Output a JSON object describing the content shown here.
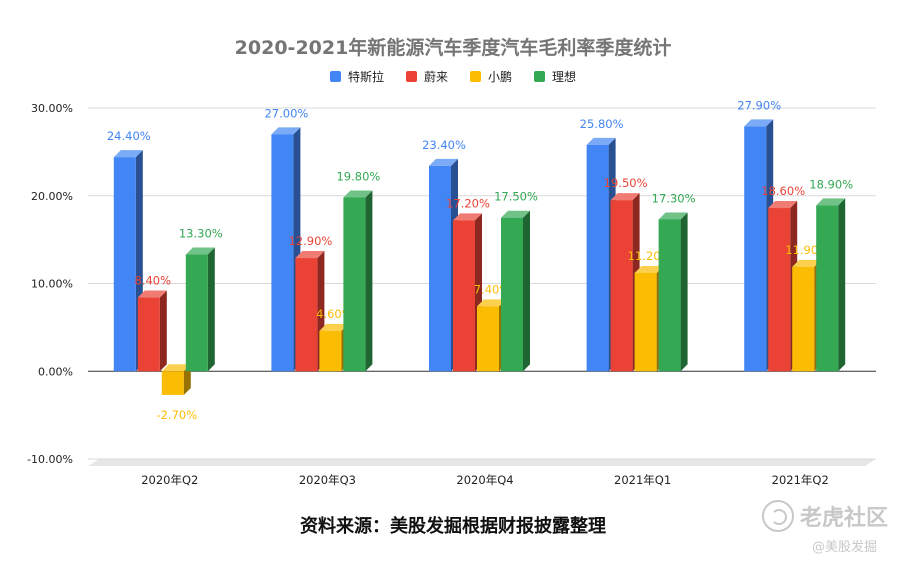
{
  "chart_data": {
    "type": "bar",
    "title": "2020-2021年新能源汽车季度汽车毛利率季度统计",
    "categories": [
      "2020年Q2",
      "2020年Q3",
      "2020年Q4",
      "2021年Q1",
      "2021年Q2"
    ],
    "series": [
      {
        "name": "特斯拉",
        "color": "#4285f4",
        "label_color": "#4285f4",
        "values": [
          24.4,
          27.0,
          23.4,
          25.8,
          27.9
        ],
        "labels": [
          "24.40%",
          "27.00%",
          "23.40%",
          "25.80%",
          "27.90%"
        ]
      },
      {
        "name": "蔚来",
        "color": "#ea4335",
        "label_color": "#ea4335",
        "values": [
          8.4,
          12.9,
          17.2,
          19.5,
          18.6
        ],
        "labels": [
          "8.40%",
          "12.90%",
          "17.20%",
          "19.50%",
          "18.60%"
        ]
      },
      {
        "name": "小鹏",
        "color": "#fbbc04",
        "label_color": "#fbbc04",
        "values": [
          -2.7,
          4.6,
          7.4,
          11.2,
          11.9
        ],
        "labels": [
          "-2.70%",
          "4.60%",
          "7.40%",
          "11.20%",
          "11.90%"
        ]
      },
      {
        "name": "理想",
        "color": "#34a853",
        "label_color": "#34a853",
        "values": [
          13.3,
          19.8,
          17.5,
          17.3,
          18.9
        ],
        "labels": [
          "13.30%",
          "19.80%",
          "17.50%",
          "17.30%",
          "18.90%"
        ]
      }
    ],
    "yticks": [
      -10,
      0,
      10,
      20,
      30
    ],
    "ytick_labels": [
      "-10.00%",
      "0.00%",
      "10.00%",
      "20.00%",
      "30.00%"
    ],
    "ylim": [
      -10,
      30
    ],
    "grid": true,
    "legend_position": "top-center",
    "style": "3d-bars"
  },
  "source_note": "资料来源：美股发掘根据财报披露整理",
  "watermark": {
    "main": "老虎社区",
    "sub": "@美股发掘"
  }
}
